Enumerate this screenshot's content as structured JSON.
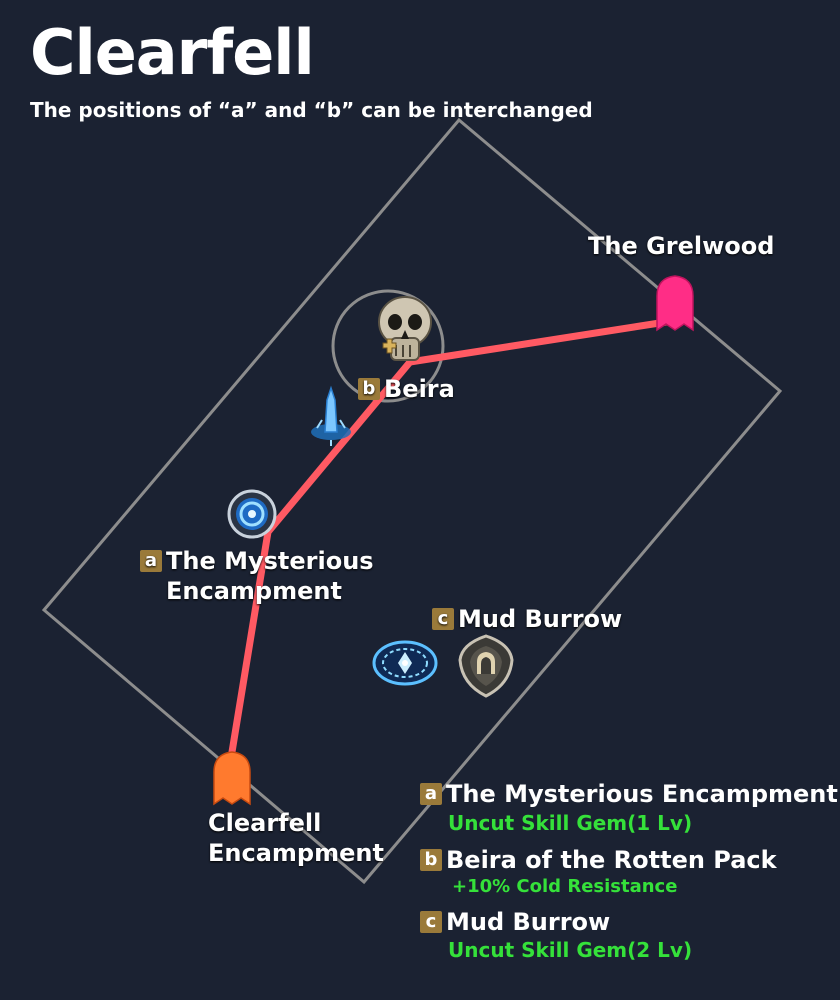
{
  "header": {
    "title": "Clearfell",
    "subtitle": "The positions of “a” and “b” can be interchanged"
  },
  "map": {
    "route_color": "#ff5a63",
    "boundary_color": "#8d8d8d",
    "labels": {
      "grelwood": "The Grelwood",
      "beira": "Beira",
      "mysterious_1": "The Mysterious",
      "mysterious_2": "Encampment",
      "mud_burrow": "Mud Burrow",
      "clearfell_1": "Clearfell",
      "clearfell_2": "Encampment"
    },
    "badges": {
      "a": "a",
      "b": "b",
      "c": "c"
    },
    "icons": [
      "waypoint-gate-icon",
      "skull-boss-icon",
      "obelisk-icon",
      "waypoint-orb-icon",
      "checkpoint-icon",
      "dungeon-shield-icon",
      "town-marker-icon"
    ]
  },
  "legend": [
    {
      "badge": "a",
      "name": "The Mysterious Encampment",
      "reward": "Uncut Skill Gem(1 Lv)"
    },
    {
      "badge": "b",
      "name": "Beira of the Rotten Pack",
      "reward": "+10% Cold Resistance"
    },
    {
      "badge": "c",
      "name": "Mud Burrow",
      "reward": "Uncut Skill Gem(2 Lv)"
    }
  ],
  "colors": {
    "background": "#1b2232",
    "badge": "#9a7a3a",
    "reward": "#35e13a",
    "grelwood": "#ff2d86",
    "town": "#ff7a2e"
  }
}
